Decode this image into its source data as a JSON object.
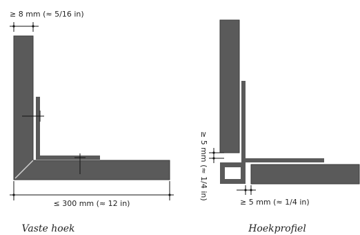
{
  "left": {
    "dim_top": "≥ 8 mm (≈ 5/16 in)",
    "dim_bottom": "≤ 300 mm (≈ 12 in)",
    "caption": "Vaste hoek"
  },
  "right": {
    "dim_vertical": "≥ 5 mm (≈ 1/4 in)",
    "dim_bottom": "≥ 5 mm (≈ 1/4 in)",
    "caption": "Hoekprofiel"
  }
}
